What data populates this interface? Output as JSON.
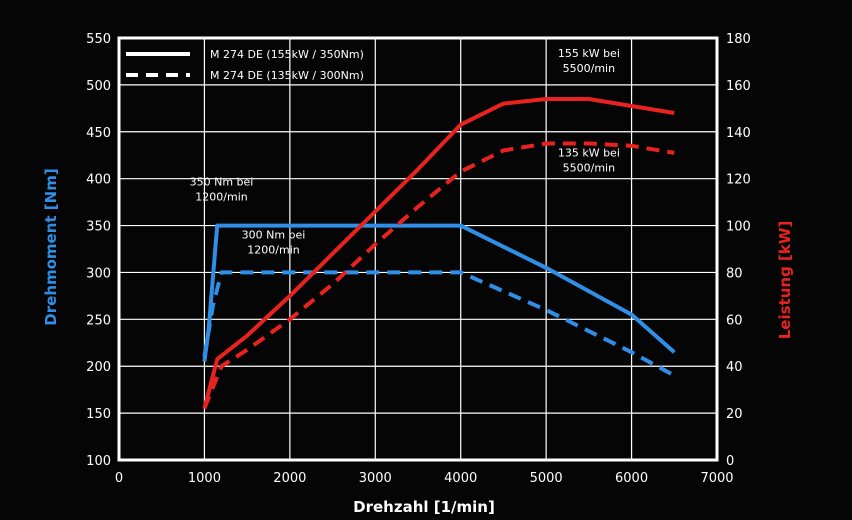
{
  "chart_data": {
    "type": "line",
    "xlabel": "Drehzahl [1/min]",
    "ylabel_left": "Drehmoment [Nm]",
    "ylabel_right": "Leistung [kW]",
    "xlim": [
      0,
      7000
    ],
    "ylim_left": [
      100,
      550
    ],
    "ylim_right": [
      0,
      180
    ],
    "x_ticks": [
      0,
      1000,
      2000,
      3000,
      4000,
      5000,
      6000,
      7000
    ],
    "y_left_ticks": [
      100,
      150,
      200,
      250,
      300,
      350,
      400,
      450,
      500,
      550
    ],
    "y_right_ticks": [
      0,
      20,
      40,
      60,
      80,
      100,
      120,
      140,
      160,
      180
    ],
    "grid": true,
    "legend_position": "top-left",
    "legend": [
      {
        "label": "M 274 DE (155kW / 350Nm)",
        "style": "solid"
      },
      {
        "label": "M 274 DE (135kW / 300Nm)",
        "style": "dashed"
      }
    ],
    "colors": {
      "torque": "#2f8fe6",
      "power": "#e8221f",
      "grid": "#ffffff",
      "background": "#050505"
    },
    "series": [
      {
        "quantity": "torque",
        "axis": "left",
        "style": "solid",
        "points": [
          [
            1000,
            205
          ],
          [
            1050,
            240
          ],
          [
            1150,
            350
          ],
          [
            1200,
            350
          ],
          [
            2000,
            350
          ],
          [
            3000,
            350
          ],
          [
            4000,
            350
          ],
          [
            5000,
            305
          ],
          [
            6000,
            255
          ],
          [
            6500,
            215
          ]
        ]
      },
      {
        "quantity": "torque",
        "axis": "left",
        "style": "dashed",
        "points": [
          [
            1000,
            210
          ],
          [
            1100,
            265
          ],
          [
            1200,
            300
          ],
          [
            2000,
            300
          ],
          [
            3000,
            300
          ],
          [
            4000,
            300
          ],
          [
            5000,
            260
          ],
          [
            6000,
            215
          ],
          [
            6500,
            190
          ]
        ]
      },
      {
        "quantity": "power",
        "axis": "right",
        "style": "solid",
        "points": [
          [
            1000,
            22
          ],
          [
            1150,
            43
          ],
          [
            1500,
            53
          ],
          [
            2000,
            70
          ],
          [
            2500,
            88
          ],
          [
            3000,
            106
          ],
          [
            3500,
            124
          ],
          [
            4000,
            143
          ],
          [
            4500,
            152
          ],
          [
            5000,
            154
          ],
          [
            5500,
            154
          ],
          [
            6000,
            151
          ],
          [
            6500,
            148
          ]
        ]
      },
      {
        "quantity": "power",
        "axis": "right",
        "style": "dashed",
        "points": [
          [
            1000,
            22
          ],
          [
            1200,
            40
          ],
          [
            1500,
            47
          ],
          [
            2000,
            60
          ],
          [
            2500,
            75
          ],
          [
            3000,
            92
          ],
          [
            3500,
            108
          ],
          [
            4000,
            123
          ],
          [
            4500,
            132
          ],
          [
            5000,
            135
          ],
          [
            5500,
            135
          ],
          [
            6000,
            134
          ],
          [
            6500,
            131
          ]
        ]
      }
    ],
    "annotations": [
      {
        "lines": [
          "350 Nm bei",
          "1200/min"
        ],
        "x": 1200,
        "y": 350,
        "axis": "left"
      },
      {
        "lines": [
          "300 Nm bei",
          "1200/min"
        ],
        "x": 1200,
        "y": 300,
        "axis": "left"
      },
      {
        "lines": [
          "155 kW bei",
          "5500/min"
        ],
        "x": 5500,
        "y": 154,
        "axis": "right"
      },
      {
        "lines": [
          "135 kW bei",
          "5500/min"
        ],
        "x": 5500,
        "y": 135,
        "axis": "right"
      }
    ]
  }
}
